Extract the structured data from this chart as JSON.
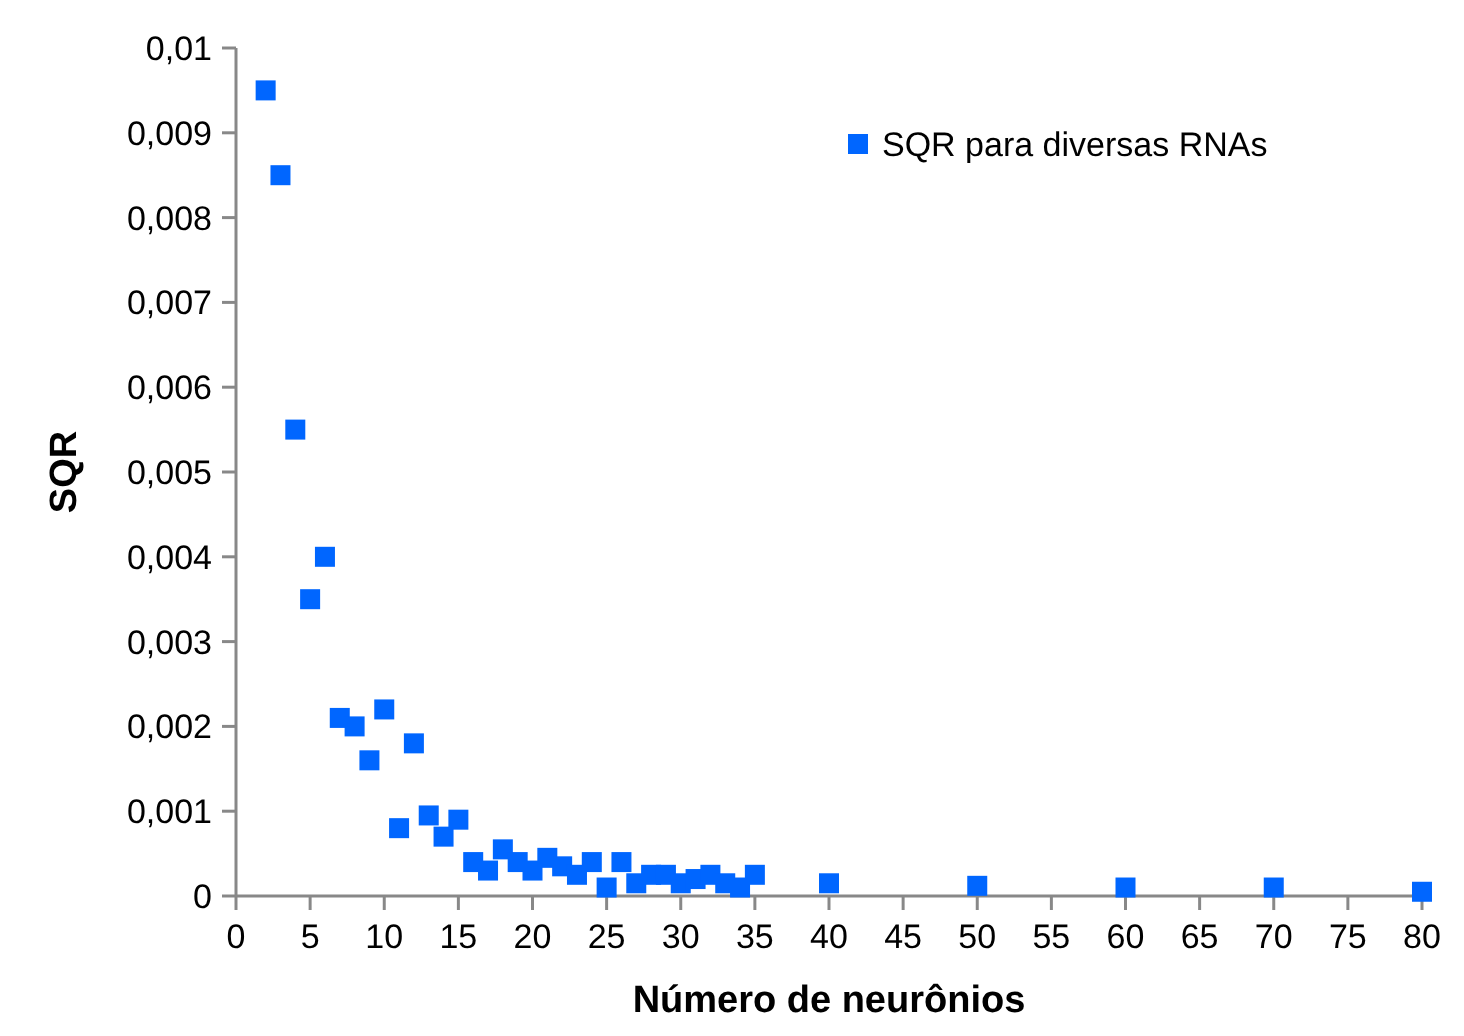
{
  "chart_data": {
    "type": "scatter",
    "xlabel": "Número de neurônios",
    "ylabel": "SQR",
    "x": [
      2,
      3,
      4,
      5,
      6,
      7,
      8,
      9,
      10,
      11,
      12,
      13,
      14,
      15,
      16,
      17,
      18,
      19,
      20,
      21,
      22,
      23,
      24,
      25,
      26,
      27,
      28,
      29,
      30,
      31,
      32,
      33,
      34,
      35,
      40,
      50,
      60,
      70,
      80
    ],
    "series": [
      {
        "name": "SQR para diversas RNAs",
        "color": "#0066ff",
        "values": [
          0.0095,
          0.0085,
          0.0055,
          0.0035,
          0.004,
          0.0021,
          0.002,
          0.0016,
          0.0022,
          0.0008,
          0.0018,
          0.00095,
          0.0007,
          0.0009,
          0.0004,
          0.0003,
          0.00055,
          0.0004,
          0.0003,
          0.00045,
          0.00035,
          0.00025,
          0.0004,
          0.0001,
          0.0004,
          0.00015,
          0.00025,
          0.00025,
          0.00015,
          0.0002,
          0.00025,
          0.00015,
          0.0001,
          0.00025,
          0.00015,
          0.00012,
          0.0001,
          0.0001,
          5e-05
        ]
      }
    ],
    "xlim": [
      0,
      80
    ],
    "xticks": [
      0,
      5,
      10,
      15,
      20,
      25,
      30,
      35,
      40,
      45,
      50,
      55,
      60,
      65,
      70,
      75,
      80
    ],
    "ylim": [
      0,
      0.01
    ],
    "yticks": [
      {
        "value": 0,
        "label": "0"
      },
      {
        "value": 0.001,
        "label": "0,001"
      },
      {
        "value": 0.002,
        "label": "0,002"
      },
      {
        "value": 0.003,
        "label": "0,003"
      },
      {
        "value": 0.004,
        "label": "0,004"
      },
      {
        "value": 0.005,
        "label": "0,005"
      },
      {
        "value": 0.006,
        "label": "0,006"
      },
      {
        "value": 0.007,
        "label": "0,007"
      },
      {
        "value": 0.008,
        "label": "0,008"
      },
      {
        "value": 0.009,
        "label": "0,009"
      },
      {
        "value": 0.01,
        "label": "0,01"
      }
    ],
    "legend": "top right",
    "marker": "square",
    "grid": false
  }
}
